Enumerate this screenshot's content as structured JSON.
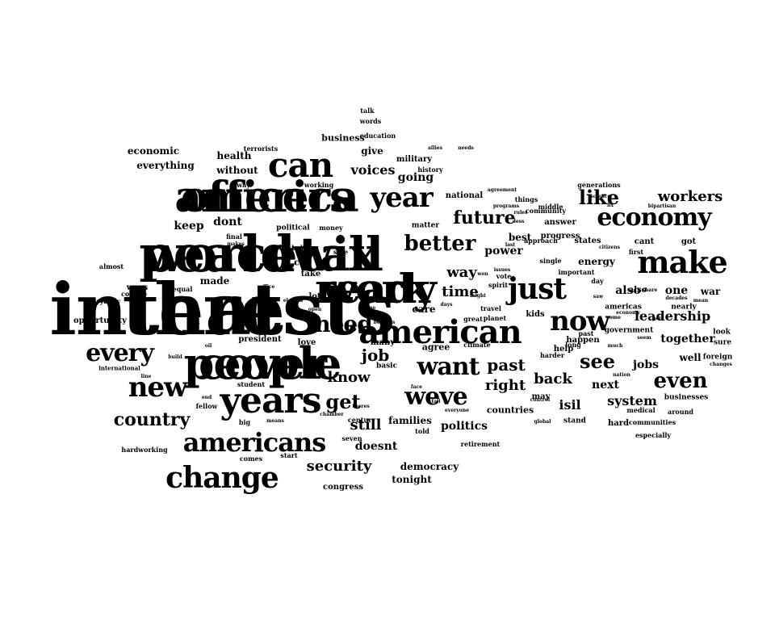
{
  "text_color": "#000000",
  "background_color": "#ffffff",
  "words": [
    "thats",
    "world",
    "will",
    "people",
    "work",
    "america",
    "years",
    "can",
    "american",
    "change",
    "make",
    "just",
    "americans",
    "economy",
    "now",
    "year",
    "new",
    "every",
    "need",
    "want",
    "better",
    "weve",
    "country",
    "see",
    "get",
    "future",
    "like",
    "even",
    "job",
    "past",
    "workers",
    "right",
    "time",
    "security",
    "back",
    "leadership",
    "know",
    "still",
    "way",
    "politics",
    "jobs",
    "system",
    "also",
    "voices",
    "isil",
    "next",
    "one",
    "together",
    "doesnt",
    "families",
    "war",
    "energy",
    "give",
    "going",
    "made",
    "keep",
    "dont",
    "democracy",
    "tonight",
    "power",
    "best",
    "care",
    "cut",
    "economic",
    "everything",
    "without",
    "health",
    "military",
    "business",
    "national",
    "agree",
    "also",
    "lot",
    "take",
    "congress",
    "businesses",
    "opportunity",
    "states",
    "cant",
    "got",
    "first",
    "nearly",
    "well",
    "sure",
    "americas",
    "happen",
    "help",
    "kids",
    "president",
    "basic",
    "many",
    "love",
    "countries",
    "may",
    "stand",
    "hard",
    "especially",
    "around",
    "government",
    "foreign",
    "look",
    "answer",
    "progress",
    "matter",
    "political",
    "believe",
    "talk",
    "words",
    "education",
    "history",
    "terrorists",
    "ways",
    "almost",
    "everybody",
    "hardworking",
    "international",
    "student",
    "fellow",
    "big",
    "comes",
    "start",
    "seven",
    "told",
    "retirement",
    "communities",
    "changes",
    "generations",
    "science",
    "medical",
    "single",
    "planet",
    "travel",
    "climate",
    "spirit",
    "vote",
    "safe",
    "money",
    "working",
    "final",
    "away",
    "makes",
    "citizens",
    "past",
    "long",
    "nation",
    "oil",
    "office",
    "college",
    "equal",
    "elected",
    "allies",
    "needs",
    "agreement",
    "middle",
    "community",
    "things",
    "approach",
    "less",
    "important",
    "day",
    "saw",
    "much",
    "come",
    "control",
    "global",
    "harder",
    "everyone",
    "face",
    "theres",
    "century",
    "chamber",
    "means",
    "benefits",
    "fall",
    "might",
    "great",
    "done",
    "open",
    "won",
    "last",
    "end",
    "build",
    "line",
    "days",
    "issues",
    "economy",
    "seem",
    "fix",
    "rules",
    "programs",
    "share",
    "part",
    "decades",
    "mean",
    "bipartisan",
    "interests",
    "peace",
    "tax",
    "cover",
    "ready",
    "officers"
  ]
}
